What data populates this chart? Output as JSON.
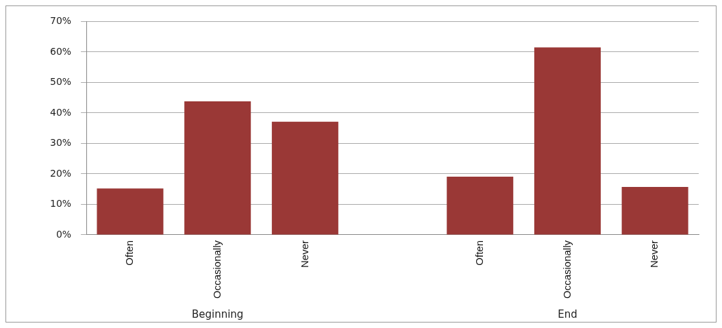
{
  "chart_data": {
    "type": "bar",
    "categories": [
      "Often",
      "Occasionally",
      "Never",
      null,
      "Often",
      "Occasionally",
      "Never"
    ],
    "values": [
      15.2,
      43.8,
      37.1,
      null,
      19.1,
      61.5,
      15.7
    ],
    "color": "#9a3836",
    "ylim": [
      0,
      70
    ],
    "yticks": [
      {
        "value": 0,
        "label": "0%"
      },
      {
        "value": 10,
        "label": "10%"
      },
      {
        "value": 20,
        "label": "20%"
      },
      {
        "value": 30,
        "label": "30%"
      },
      {
        "value": 40,
        "label": "40%"
      },
      {
        "value": 50,
        "label": "50%"
      },
      {
        "value": 60,
        "label": "60%"
      },
      {
        "value": 70,
        "label": "70%"
      }
    ],
    "grid": "y",
    "legend": false,
    "annotations": [
      "Beginning",
      "End"
    ]
  }
}
